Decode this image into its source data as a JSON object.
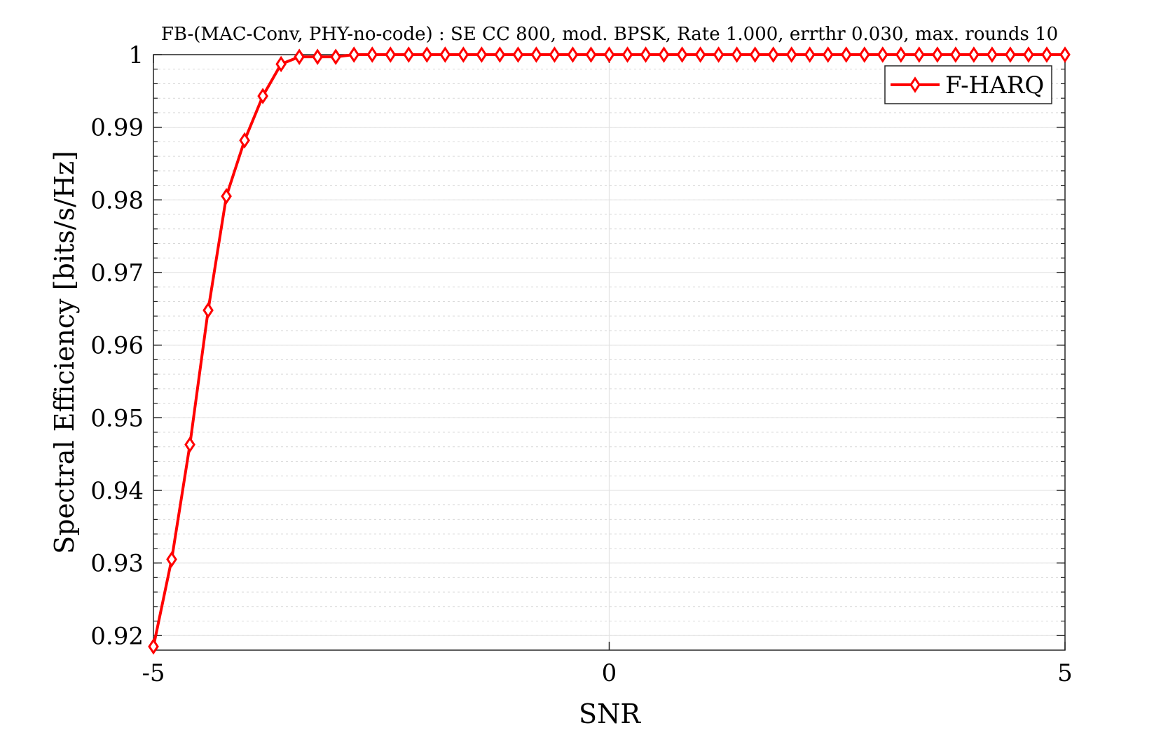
{
  "chart_data": {
    "type": "line",
    "title": "FB-(MAC-Conv, PHY-no-code) : SE CC 800, mod. BPSK, Rate 1.000, errthr 0.030, max. rounds 10",
    "xlabel": "SNR",
    "ylabel": "Spectral Efficiency [bits/s/Hz]",
    "xlim": [
      -5,
      5
    ],
    "ylim": [
      0.918,
      1.0
    ],
    "xticks": [
      -5,
      0,
      5
    ],
    "xtick_labels": [
      "-5",
      "0",
      "5"
    ],
    "yticks": [
      0.92,
      0.93,
      0.94,
      0.95,
      0.96,
      0.97,
      0.98,
      0.99,
      1.0
    ],
    "ytick_labels": [
      "0.92",
      "0.93",
      "0.94",
      "0.95",
      "0.96",
      "0.97",
      "0.98",
      "0.99",
      "1"
    ],
    "grid": true,
    "minor_grid": true,
    "legend_position": "top-right",
    "series": [
      {
        "name": "F-HARQ",
        "color": "#ff0000",
        "marker": "diamond",
        "x": [
          -5.0,
          -4.8,
          -4.6,
          -4.4,
          -4.2,
          -4.0,
          -3.8,
          -3.6,
          -3.4,
          -3.2,
          -3.0,
          -2.8,
          -2.6,
          -2.4,
          -2.2,
          -2.0,
          -1.8,
          -1.6,
          -1.4,
          -1.2,
          -1.0,
          -0.8,
          -0.6,
          -0.4,
          -0.2,
          0.0,
          0.2,
          0.4,
          0.6,
          0.8,
          1.0,
          1.2,
          1.4,
          1.6,
          1.8,
          2.0,
          2.2,
          2.4,
          2.6,
          2.8,
          3.0,
          3.2,
          3.4,
          3.6,
          3.8,
          4.0,
          4.2,
          4.4,
          4.6,
          4.8,
          5.0
        ],
        "values": [
          0.9185,
          0.9305,
          0.9463,
          0.9648,
          0.9805,
          0.9882,
          0.9943,
          0.9987,
          0.9997,
          0.9997,
          0.9997,
          1.0,
          1.0,
          1.0,
          1.0,
          1.0,
          1.0,
          1.0,
          1.0,
          1.0,
          1.0,
          1.0,
          1.0,
          1.0,
          1.0,
          1.0,
          1.0,
          1.0,
          1.0,
          1.0,
          1.0,
          1.0,
          1.0,
          1.0,
          1.0,
          1.0,
          1.0,
          1.0,
          1.0,
          1.0,
          1.0,
          1.0,
          1.0,
          1.0,
          1.0,
          1.0,
          1.0,
          1.0,
          1.0,
          1.0,
          1.0
        ]
      }
    ]
  }
}
